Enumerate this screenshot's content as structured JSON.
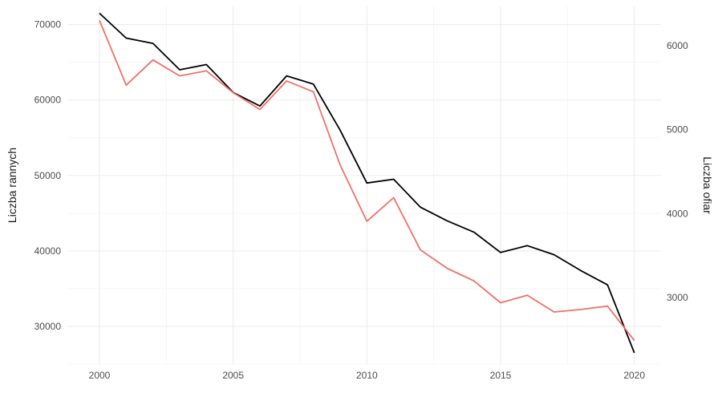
{
  "chart_data": {
    "type": "line",
    "title": "",
    "xlabel": "",
    "ylabel_left": "Liczba rannych",
    "ylabel_right": "Liczba ofiar",
    "x": [
      2000,
      2001,
      2002,
      2003,
      2004,
      2005,
      2006,
      2007,
      2008,
      2009,
      2010,
      2011,
      2012,
      2013,
      2014,
      2015,
      2016,
      2017,
      2018,
      2019,
      2020
    ],
    "xlim": [
      1998.8,
      2021
    ],
    "ylim_left": [
      24900,
      72400
    ],
    "ylim_right": [
      2200,
      6467
    ],
    "x_ticks": [
      2000,
      2005,
      2010,
      2015,
      2020
    ],
    "y_left_ticks": [
      30000,
      40000,
      50000,
      60000,
      70000
    ],
    "y_right_ticks": [
      3000,
      4000,
      5000,
      6000
    ],
    "grid": true,
    "series": [
      {
        "axis": "left",
        "color": "#000000",
        "values": [
          71500,
          68200,
          67500,
          64000,
          64700,
          61000,
          59200,
          63200,
          62100,
          56000,
          49000,
          49500,
          45800,
          44000,
          42500,
          39800,
          40700,
          39500,
          37400,
          35500,
          26500
        ]
      },
      {
        "axis": "right",
        "color": "#f07167",
        "values": [
          6300,
          5530,
          5830,
          5640,
          5700,
          5440,
          5240,
          5580,
          5450,
          4580,
          3910,
          4190,
          3570,
          3350,
          3200,
          2940,
          3030,
          2830,
          2860,
          2900,
          2490
        ]
      }
    ]
  }
}
